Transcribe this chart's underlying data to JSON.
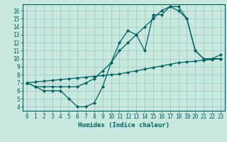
{
  "xlabel": "Humidex (Indice chaleur)",
  "xlim": [
    -0.5,
    23.5
  ],
  "ylim": [
    3.5,
    16.8
  ],
  "xticks": [
    0,
    1,
    2,
    3,
    4,
    5,
    6,
    7,
    8,
    9,
    10,
    11,
    12,
    13,
    14,
    15,
    16,
    17,
    18,
    19,
    20,
    21,
    22,
    23
  ],
  "yticks": [
    4,
    5,
    6,
    7,
    8,
    9,
    10,
    11,
    12,
    13,
    14,
    15,
    16
  ],
  "background_color": "#c8e8e0",
  "grid_color": "#a0c8c0",
  "line_color": "#006060",
  "line1_x": [
    0,
    1,
    2,
    3,
    4,
    5,
    6,
    7,
    8,
    9,
    10,
    11,
    12,
    13,
    14,
    15,
    16,
    17,
    18,
    19,
    20,
    21,
    22,
    23
  ],
  "line1_y": [
    7.0,
    6.5,
    6.0,
    6.0,
    6.0,
    5.0,
    4.0,
    4.0,
    4.5,
    6.5,
    9.5,
    12.0,
    13.5,
    13.0,
    11.0,
    15.5,
    15.5,
    16.5,
    16.5,
    15.0,
    11.0,
    10.0,
    10.0,
    10.0
  ],
  "line2_x": [
    0,
    1,
    2,
    3,
    4,
    5,
    6,
    7,
    8,
    9,
    10,
    11,
    12,
    13,
    14,
    15,
    16,
    17,
    18,
    19,
    20,
    21,
    22,
    23
  ],
  "line2_y": [
    7.0,
    6.5,
    6.5,
    6.5,
    6.5,
    6.5,
    6.5,
    7.0,
    7.5,
    8.5,
    9.5,
    11.0,
    12.0,
    13.0,
    14.0,
    15.0,
    16.0,
    16.5,
    16.0,
    15.0,
    11.0,
    10.0,
    10.0,
    10.5
  ],
  "line3_x": [
    0,
    1,
    2,
    3,
    4,
    5,
    6,
    7,
    8,
    9,
    10,
    11,
    12,
    13,
    14,
    15,
    16,
    17,
    18,
    19,
    20,
    21,
    22,
    23
  ],
  "line3_y": [
    7.0,
    7.1,
    7.2,
    7.3,
    7.4,
    7.5,
    7.6,
    7.7,
    7.8,
    7.9,
    8.0,
    8.1,
    8.3,
    8.5,
    8.7,
    8.9,
    9.1,
    9.3,
    9.5,
    9.6,
    9.7,
    9.8,
    9.9,
    10.0
  ],
  "tick_fontsize": 5.5,
  "label_fontsize": 6.5
}
